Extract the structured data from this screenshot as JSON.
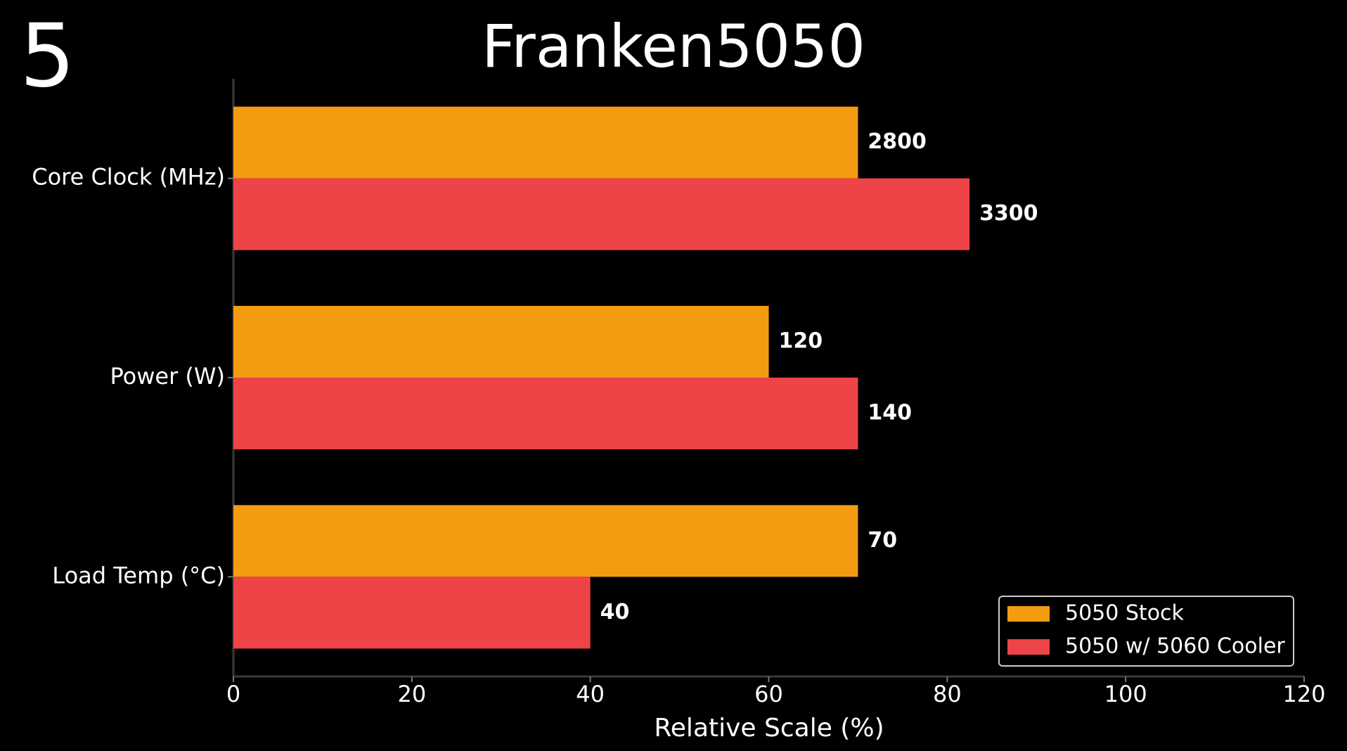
{
  "chart_data": {
    "type": "hbar",
    "title": "Franken5050",
    "corner_label": "5",
    "xlabel": "Relative Scale (%)",
    "categories": [
      "Core Clock (MHz)",
      "Power (W)",
      "Load Temp (°C)"
    ],
    "series": [
      {
        "name": "5050 Stock",
        "color": "#f39c12",
        "values": [
          70,
          60,
          70
        ],
        "data_labels": [
          2800,
          120,
          70
        ]
      },
      {
        "name": "5050 w/ 5060 Cooler",
        "color": "#ef4447",
        "values": [
          82.5,
          70,
          40
        ],
        "data_labels": [
          3300,
          140,
          40
        ]
      }
    ],
    "xlim": [
      0,
      120
    ],
    "xticks": [
      0,
      20,
      40,
      60,
      80,
      100,
      120
    ],
    "grid": false,
    "legend": "lower right"
  }
}
